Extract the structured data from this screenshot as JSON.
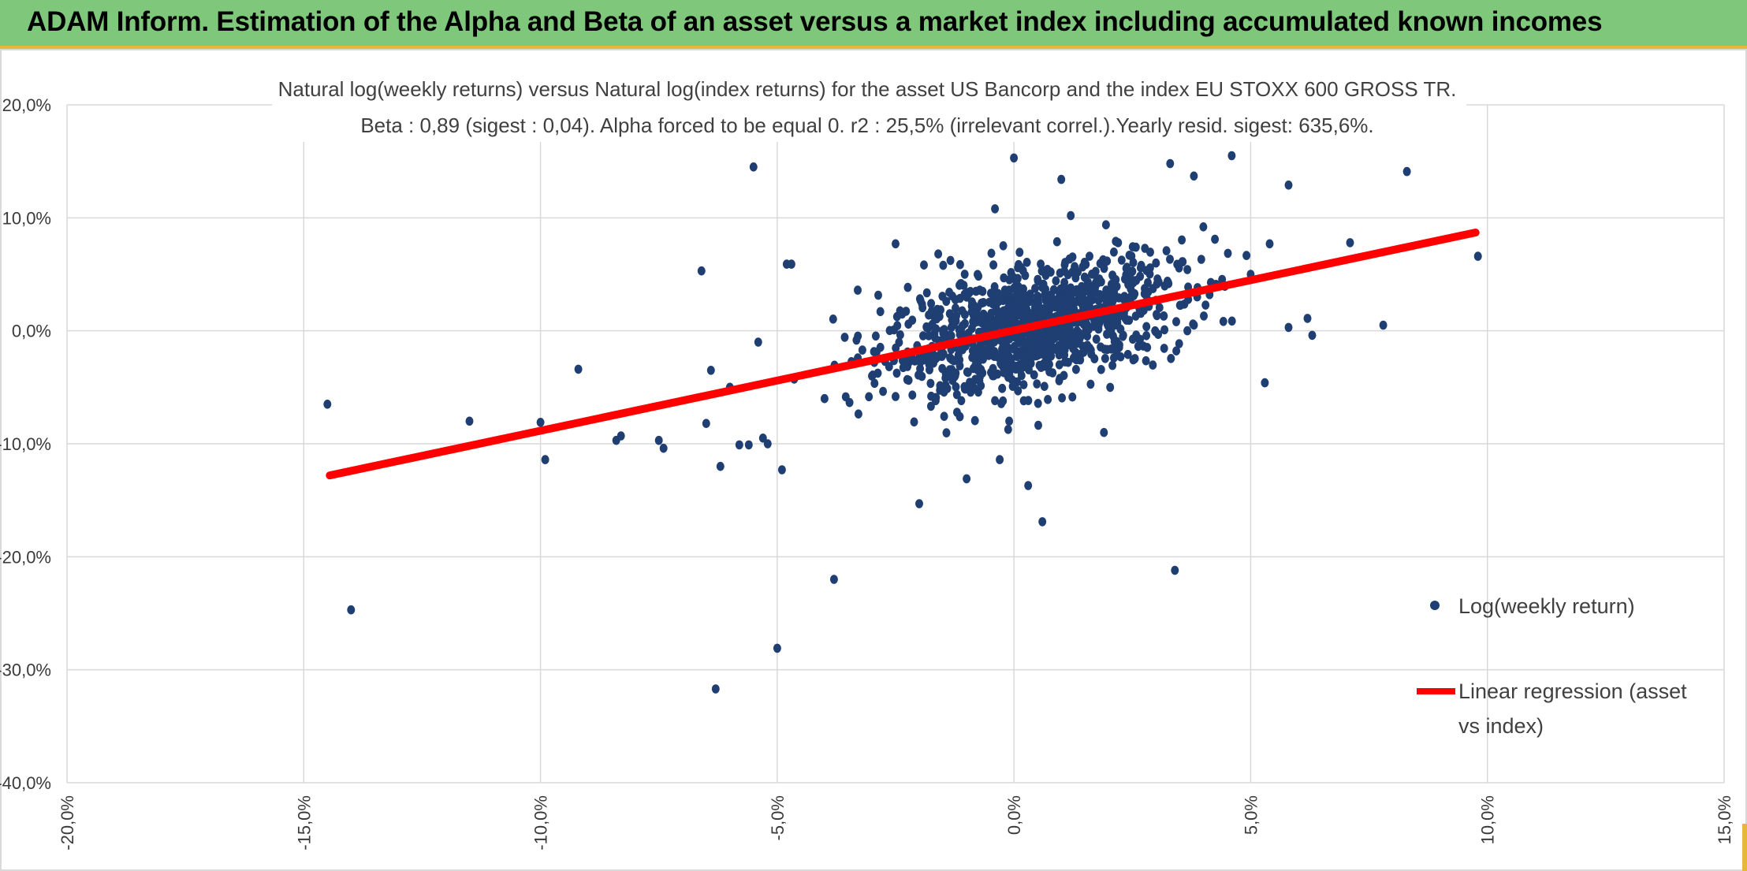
{
  "banner": {
    "title": "ADAM Inform. Estimation of the Alpha and Beta of an asset versus a market index including accumulated known incomes"
  },
  "colors": {
    "banner_bg": "#7ec77b",
    "accent": "#e9b53b",
    "points": "#1f3f73",
    "regression": "#ff0000",
    "grid": "#d9d9d9"
  },
  "chart_data": {
    "type": "scatter",
    "title_line1": "Natural log(weekly returns) versus Natural log(index returns) for the asset US Bancorp and the index EU STOXX 600 GROSS TR.",
    "title_line2": "Beta : 0,89 (sigest : 0,04). Alpha forced to be equal 0. r2 : 25,5% (irrelevant correl.).Yearly resid. sigest: 635,6%.",
    "xlim": [
      -0.2,
      0.15
    ],
    "ylim": [
      -0.4,
      0.2
    ],
    "x_ticks": [
      -0.2,
      -0.15,
      -0.1,
      -0.05,
      0.0,
      0.05,
      0.1,
      0.15
    ],
    "x_tick_labels": [
      "-20,0%",
      "-15,0%",
      "-10,0%",
      "-5,0%",
      "0,0%",
      "5,0%",
      "10,0%",
      "15,0%"
    ],
    "y_ticks": [
      0.2,
      0.1,
      0.0,
      -0.1,
      -0.2,
      -0.3,
      -0.4
    ],
    "y_tick_labels": [
      "20,0%",
      "10,0%",
      "0,0%",
      "-10,0%",
      "-20,0%",
      "-30,0%",
      "-40,0%"
    ],
    "grid": true,
    "legend_position": "right",
    "series": [
      {
        "name": "Log(weekly return)",
        "kind": "scatter",
        "points": [
          [
            -0.145,
            -0.065
          ],
          [
            -0.14,
            -0.247
          ],
          [
            -0.115,
            -0.08
          ],
          [
            -0.1,
            -0.081
          ],
          [
            -0.099,
            -0.114
          ],
          [
            -0.092,
            -0.034
          ],
          [
            -0.084,
            -0.097
          ],
          [
            -0.083,
            -0.093
          ],
          [
            -0.075,
            -0.097
          ],
          [
            -0.074,
            -0.104
          ],
          [
            -0.066,
            0.053
          ],
          [
            -0.065,
            -0.082
          ],
          [
            -0.064,
            -0.035
          ],
          [
            -0.063,
            -0.317
          ],
          [
            -0.062,
            -0.12
          ],
          [
            -0.06,
            -0.05
          ],
          [
            -0.058,
            -0.101
          ],
          [
            -0.056,
            -0.101
          ],
          [
            -0.055,
            0.145
          ],
          [
            -0.054,
            -0.01
          ],
          [
            -0.053,
            -0.095
          ],
          [
            -0.052,
            -0.1
          ],
          [
            -0.05,
            -0.281
          ],
          [
            -0.049,
            -0.123
          ],
          [
            -0.048,
            0.059
          ],
          [
            -0.047,
            0.059
          ],
          [
            -0.04,
            -0.06
          ],
          [
            -0.038,
            -0.22
          ],
          [
            -0.033,
            0.036
          ],
          [
            -0.03,
            -0.04
          ],
          [
            -0.025,
            0.077
          ],
          [
            -0.02,
            -0.153
          ],
          [
            -0.016,
            0.068
          ],
          [
            -0.01,
            -0.131
          ],
          [
            -0.008,
            0.035
          ],
          [
            -0.004,
            0.108
          ],
          [
            -0.003,
            -0.114
          ],
          [
            -0.001,
            -0.08
          ],
          [
            0.0,
            0.153
          ],
          [
            0.003,
            -0.137
          ],
          [
            0.006,
            -0.169
          ],
          [
            0.01,
            0.134
          ],
          [
            0.012,
            0.102
          ],
          [
            0.019,
            -0.09
          ],
          [
            0.022,
            0.078
          ],
          [
            0.03,
            0.06
          ],
          [
            0.033,
            0.148
          ],
          [
            0.034,
            -0.212
          ],
          [
            0.038,
            0.137
          ],
          [
            0.04,
            0.092
          ],
          [
            0.046,
            0.155
          ],
          [
            0.05,
            0.05
          ],
          [
            0.053,
            -0.046
          ],
          [
            0.054,
            0.077
          ],
          [
            0.058,
            0.129
          ],
          [
            0.058,
            0.003
          ],
          [
            0.062,
            0.011
          ],
          [
            0.063,
            -0.004
          ],
          [
            0.071,
            0.078
          ],
          [
            0.078,
            0.005
          ],
          [
            0.083,
            0.141
          ],
          [
            0.098,
            0.066
          ]
        ]
      },
      {
        "name": "Linear regression (asset vs index)",
        "kind": "line",
        "x": [
          -0.1445,
          0.0975
        ],
        "y": [
          -0.128,
          0.087
        ]
      }
    ],
    "legend": [
      {
        "label": "Log(weekly return)",
        "marker": "dot"
      },
      {
        "label_line1": "Linear regression (asset",
        "label_line2": "vs index)",
        "marker": "line"
      }
    ]
  }
}
